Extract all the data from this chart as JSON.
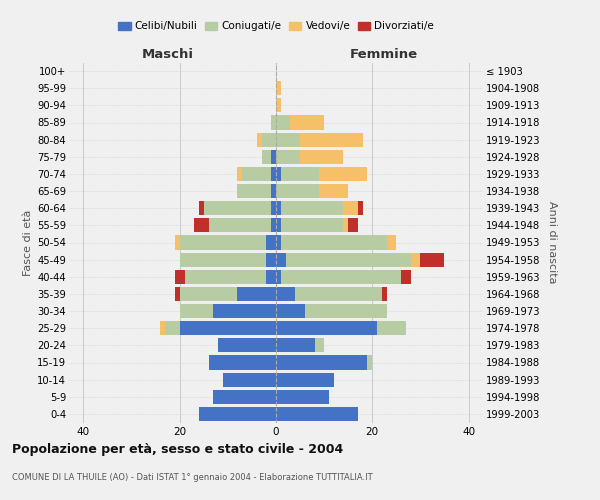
{
  "age_groups": [
    "0-4",
    "5-9",
    "10-14",
    "15-19",
    "20-24",
    "25-29",
    "30-34",
    "35-39",
    "40-44",
    "45-49",
    "50-54",
    "55-59",
    "60-64",
    "65-69",
    "70-74",
    "75-79",
    "80-84",
    "85-89",
    "90-94",
    "95-99",
    "100+"
  ],
  "birth_years": [
    "1999-2003",
    "1994-1998",
    "1989-1993",
    "1984-1988",
    "1979-1983",
    "1974-1978",
    "1969-1973",
    "1964-1968",
    "1959-1963",
    "1954-1958",
    "1949-1953",
    "1944-1948",
    "1939-1943",
    "1934-1938",
    "1929-1933",
    "1924-1928",
    "1919-1923",
    "1914-1918",
    "1909-1913",
    "1904-1908",
    "≤ 1903"
  ],
  "male": {
    "celibi": [
      16,
      13,
      11,
      14,
      12,
      20,
      13,
      8,
      2,
      2,
      2,
      1,
      1,
      1,
      1,
      1,
      0,
      0,
      0,
      0,
      0
    ],
    "coniugati": [
      0,
      0,
      0,
      0,
      0,
      3,
      7,
      12,
      17,
      18,
      18,
      13,
      14,
      7,
      6,
      2,
      3,
      1,
      0,
      0,
      0
    ],
    "vedovi": [
      0,
      0,
      0,
      0,
      0,
      1,
      0,
      0,
      0,
      0,
      1,
      0,
      0,
      0,
      1,
      0,
      1,
      0,
      0,
      0,
      0
    ],
    "divorziati": [
      0,
      0,
      0,
      0,
      0,
      0,
      0,
      1,
      2,
      0,
      0,
      3,
      1,
      0,
      0,
      0,
      0,
      0,
      0,
      0,
      0
    ]
  },
  "female": {
    "nubili": [
      17,
      11,
      12,
      19,
      8,
      21,
      6,
      4,
      1,
      2,
      1,
      1,
      1,
      0,
      1,
      0,
      0,
      0,
      0,
      0,
      0
    ],
    "coniugate": [
      0,
      0,
      0,
      1,
      2,
      6,
      17,
      18,
      25,
      26,
      22,
      13,
      13,
      9,
      8,
      5,
      5,
      3,
      0,
      0,
      0
    ],
    "vedove": [
      0,
      0,
      0,
      0,
      0,
      0,
      0,
      0,
      0,
      2,
      2,
      1,
      3,
      6,
      10,
      9,
      13,
      7,
      1,
      1,
      0
    ],
    "divorziate": [
      0,
      0,
      0,
      0,
      0,
      0,
      0,
      1,
      2,
      5,
      0,
      2,
      1,
      0,
      0,
      0,
      0,
      0,
      0,
      0,
      0
    ]
  },
  "colors": {
    "celibi": "#4472c4",
    "coniugati": "#b8cca4",
    "vedovi": "#f5c068",
    "divorziati": "#c0302a"
  },
  "legend_labels": [
    "Celibi/Nubili",
    "Coniugati/e",
    "Vedovi/e",
    "Divorziati/e"
  ],
  "title": "Popolazione per età, sesso e stato civile - 2004",
  "subtitle": "COMUNE DI LA THUILE (AO) - Dati ISTAT 1° gennaio 2004 - Elaborazione TUTTITALIA.IT",
  "xlabel_left": "Maschi",
  "xlabel_right": "Femmine",
  "ylabel_left": "Fasce di età",
  "ylabel_right": "Anni di nascita",
  "xlim": 43,
  "background_color": "#f0f0f0"
}
